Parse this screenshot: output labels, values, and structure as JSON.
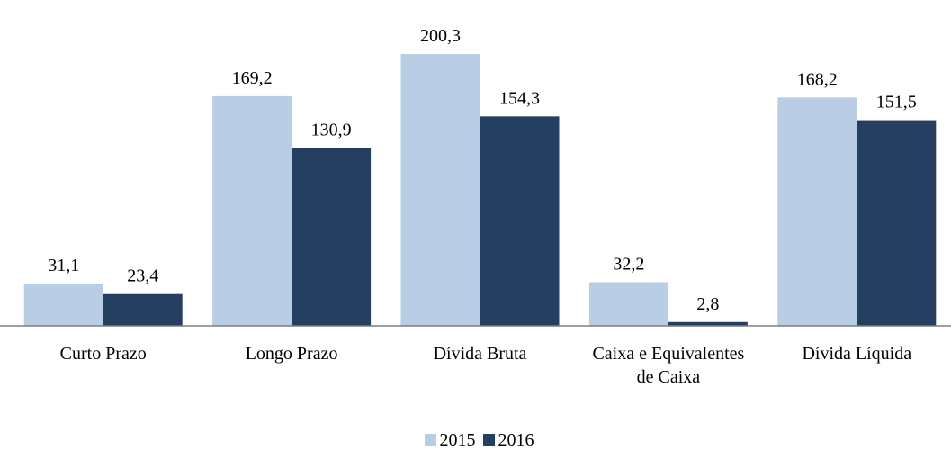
{
  "chart_data": {
    "type": "bar",
    "categories": [
      "Curto Prazo",
      "Longo Prazo",
      "Dívida Bruta",
      "Caixa e Equivalentes de Caixa",
      "Dívida Líquida"
    ],
    "series": [
      {
        "name": "2015",
        "color": "#b9cde5",
        "values": [
          31.1,
          169.2,
          200.3,
          32.2,
          168.2
        ],
        "value_labels": [
          "31,1",
          "169,2",
          "200,3",
          "32,2",
          "168,2"
        ]
      },
      {
        "name": "2016",
        "color": "#243f60",
        "values": [
          23.4,
          130.9,
          154.3,
          2.8,
          151.5
        ],
        "value_labels": [
          "23,4",
          "130,9",
          "154,3",
          "2,8",
          "151,5"
        ]
      }
    ]
  }
}
